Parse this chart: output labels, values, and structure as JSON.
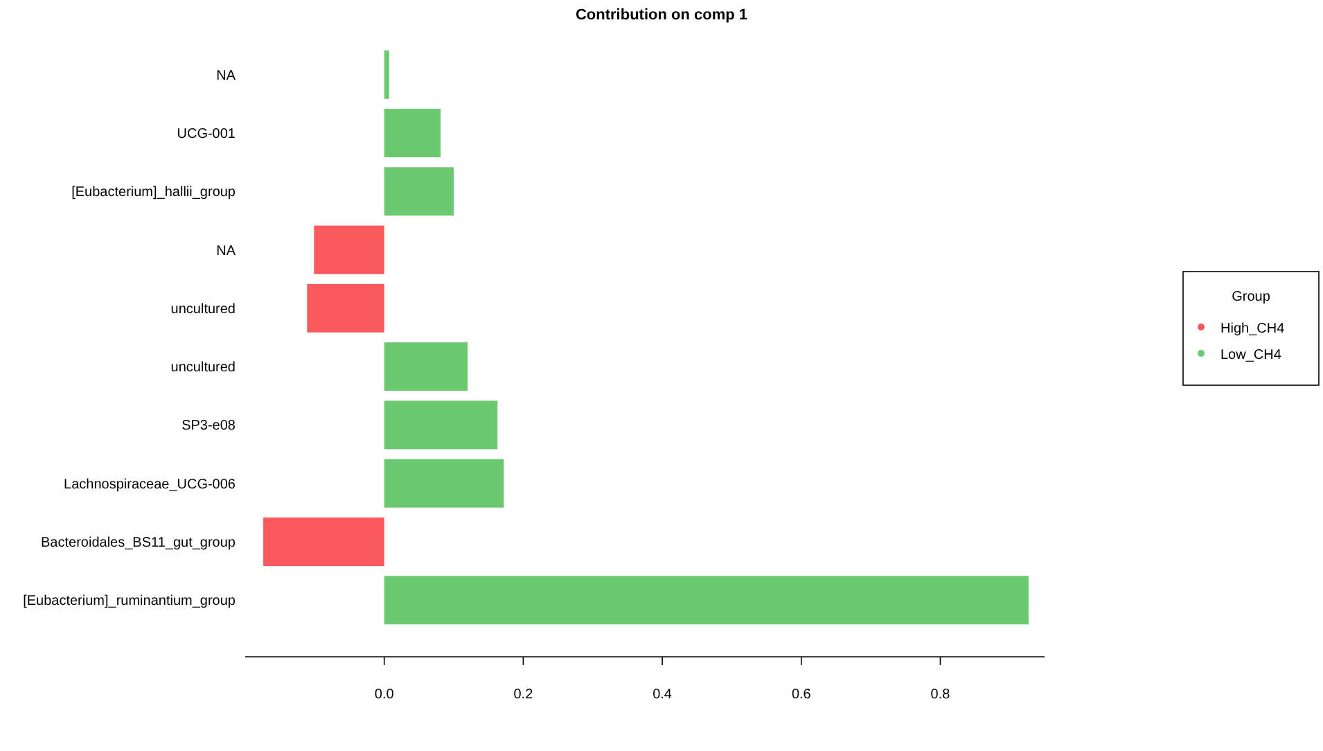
{
  "chart_data": {
    "type": "bar",
    "title": "Contribution on comp 1",
    "orientation": "horizontal",
    "categories": [
      "NA",
      "UCG-001",
      "[Eubacterium]_hallii_group",
      "NA",
      "uncultured",
      "uncultured",
      "SP3-e08",
      "Lachnospiraceae_UCG-006",
      "Bacteroidales_BS11_gut_group",
      "[Eubacterium]_ruminantium_group"
    ],
    "series": [
      {
        "name": "High_CH4",
        "color": "#f8595d",
        "values": [
          null,
          null,
          null,
          -0.101,
          -0.111,
          null,
          null,
          null,
          -0.174,
          null
        ]
      },
      {
        "name": "Low_CH4",
        "color": "#6bc96f",
        "values": [
          0.007,
          0.081,
          0.1,
          null,
          null,
          0.12,
          0.163,
          0.172,
          null,
          0.927
        ]
      }
    ],
    "xlim": [
      -0.2,
      0.95
    ],
    "xticks": [
      {
        "value": 0,
        "label": "0.0"
      },
      {
        "value": 0.2,
        "label": "0.2"
      },
      {
        "value": 0.4,
        "label": "0.4"
      },
      {
        "value": 0.6,
        "label": "0.6"
      },
      {
        "value": 0.8,
        "label": "0.8"
      }
    ],
    "legend": "right",
    "legend_title": "Group",
    "grid": false
  }
}
